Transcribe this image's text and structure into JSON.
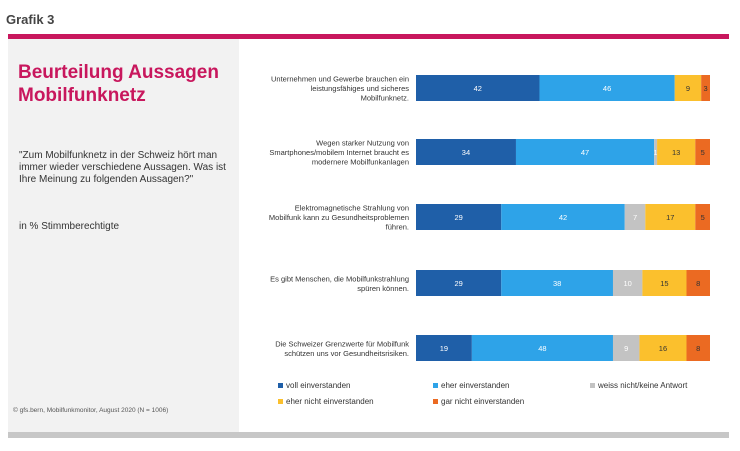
{
  "header": {
    "label": "Grafik 3"
  },
  "panel": {
    "title_line1": "Beurteilung Aussagen",
    "title_line2": "Mobilfunknetz",
    "question": "\"Zum Mobilfunknetz in der Schweiz hört man immer wieder verschiedene Aussagen. Was ist Ihre Meinung zu folgenden Aussagen?\"",
    "unit": "in % Stimmberechtigte",
    "source": "© gfs.bern, Mobilfunkmonitor, August 2020 (N = 1006)"
  },
  "chart_data": {
    "type": "bar",
    "orientation": "horizontal",
    "stacked": true,
    "unit": "%",
    "categories": [
      [
        "Unternehmen und Gewerbe brauchen ein",
        "leistungsfähiges und sicheres",
        "Mobilfunknetz."
      ],
      [
        "Wegen starker Nutzung von",
        "Smartphones/mobilem Internet braucht es",
        "modernere Mobilfunkanlagen"
      ],
      [
        "Elektromagnetische Strahlung von",
        "Mobilfunk kann zu Gesundheitsproblemen",
        "führen."
      ],
      [
        "Es gibt Menschen, die Mobilfunkstrahlung",
        "spüren können."
      ],
      [
        "Die Schweizer Grenzwerte für Mobilfunk",
        "schützen uns vor Gesundheitsrisiken."
      ]
    ],
    "series": [
      {
        "name": "voll einverstanden",
        "color": "#1f5fa8",
        "values": [
          42,
          34,
          29,
          29,
          19
        ],
        "label_color": "#ffffff"
      },
      {
        "name": "eher einverstanden",
        "color": "#2ea3e8",
        "values": [
          46,
          47,
          42,
          38,
          48
        ],
        "label_color": "#ffffff"
      },
      {
        "name": "weiss nicht/keine Antwort",
        "color": "#c3c3c3",
        "values": [
          0,
          1,
          7,
          10,
          9
        ],
        "label_color": "#ffffff"
      },
      {
        "name": "eher nicht einverstanden",
        "color": "#fbc02d",
        "values": [
          9,
          13,
          17,
          15,
          16
        ],
        "label_color": "#333333"
      },
      {
        "name": "gar nicht einverstanden",
        "color": "#eb6a22",
        "values": [
          3,
          5,
          5,
          8,
          8
        ],
        "label_color": "#333333"
      }
    ],
    "value_labels": [
      [
        "42",
        "46",
        "",
        "9",
        "3"
      ],
      [
        "34",
        "47",
        "1",
        "13",
        "5"
      ],
      [
        "29",
        "42",
        "7",
        "17",
        "5"
      ],
      [
        "29",
        "38",
        "10",
        "15",
        "8"
      ],
      [
        "19",
        "48",
        "9",
        "16",
        "8"
      ]
    ],
    "legend": [
      {
        "name": "voll einverstanden",
        "color": "#1f5fa8"
      },
      {
        "name": "eher einverstanden",
        "color": "#2ea3e8"
      },
      {
        "name": "weiss nicht/keine Antwort",
        "color": "#c3c3c3"
      },
      {
        "name": "eher nicht einverstanden",
        "color": "#fbc02d"
      },
      {
        "name": "gar nicht einverstanden",
        "color": "#eb6a22"
      }
    ],
    "legend_position": "bottom",
    "grid": false
  }
}
